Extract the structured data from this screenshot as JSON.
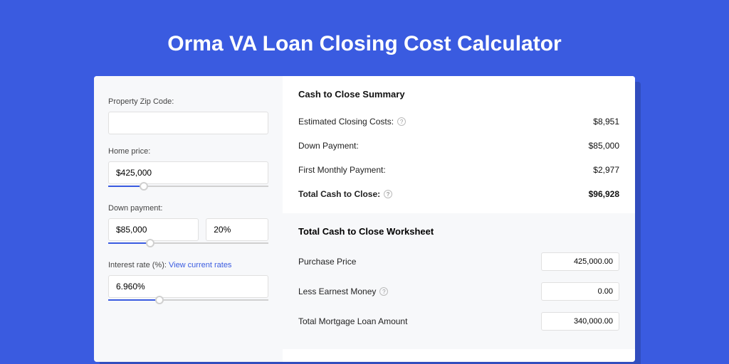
{
  "page": {
    "title": "Orma VA Loan Closing Cost Calculator",
    "background_color": "#3a5be0",
    "title_color": "#ffffff",
    "title_fontsize": 30
  },
  "left_panel": {
    "background_color": "#f7f8fa",
    "zip": {
      "label": "Property Zip Code:",
      "value": ""
    },
    "home_price": {
      "label": "Home price:",
      "value": "$425,000",
      "slider_pct": 22
    },
    "down_payment": {
      "label": "Down payment:",
      "amount": "$85,000",
      "percent": "20%",
      "slider_pct": 26
    },
    "interest_rate": {
      "label": "Interest rate (%):",
      "link_text": "View current rates",
      "value": "6.960%",
      "slider_pct": 32
    }
  },
  "summary": {
    "title": "Cash to Close Summary",
    "rows": [
      {
        "label": "Estimated Closing Costs:",
        "has_help": true,
        "value": "$8,951",
        "bold": false
      },
      {
        "label": "Down Payment:",
        "has_help": false,
        "value": "$85,000",
        "bold": false
      },
      {
        "label": "First Monthly Payment:",
        "has_help": false,
        "value": "$2,977",
        "bold": false
      },
      {
        "label": "Total Cash to Close:",
        "has_help": true,
        "value": "$96,928",
        "bold": true
      }
    ]
  },
  "worksheet": {
    "title": "Total Cash to Close Worksheet",
    "rows": [
      {
        "label": "Purchase Price",
        "has_help": false,
        "value": "425,000.00"
      },
      {
        "label": "Less Earnest Money",
        "has_help": true,
        "value": "0.00"
      },
      {
        "label": "Total Mortgage Loan Amount",
        "has_help": false,
        "value": "340,000.00"
      }
    ]
  },
  "colors": {
    "accent": "#3a5be0",
    "panel_bg": "#f7f8fa",
    "card_bg": "#ffffff",
    "border": "#e0e0e0",
    "text": "#222222",
    "muted": "#999999"
  }
}
